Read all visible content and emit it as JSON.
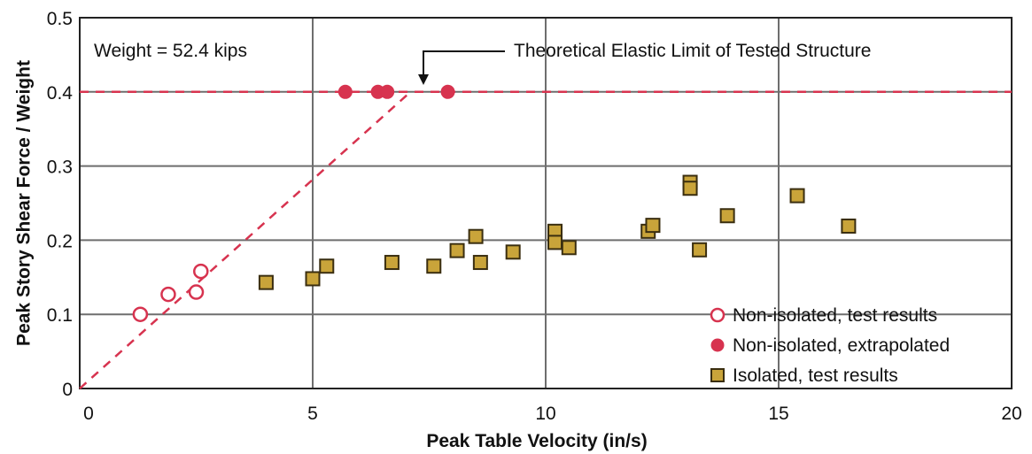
{
  "chart_data": {
    "type": "scatter",
    "xlabel": "Peak Table Velocity (in/s)",
    "ylabel": "Peak Story Shear Force / Weight",
    "xlim": [
      0,
      20
    ],
    "ylim": [
      0,
      0.5
    ],
    "x_ticks": [
      "0",
      "5",
      "10",
      "15",
      "20"
    ],
    "y_ticks": [
      "0",
      "0.1",
      "0.2",
      "0.3",
      "0.4",
      "0.5"
    ],
    "grid": true,
    "legend_placement": "bottom-right",
    "annotations": {
      "weight": "Weight = 52.4 kips",
      "elastic_limit": "Theoretical Elastic Limit of Tested Structure"
    },
    "elastic_limit_value": 0.4,
    "elastic_line": {
      "x": [
        0,
        7.1
      ],
      "y": [
        0,
        0.4
      ]
    },
    "series": [
      {
        "name": "Non-isolated, test results",
        "marker": "open-circle",
        "color": "#d7334f",
        "points": [
          [
            1.3,
            0.1
          ],
          [
            1.9,
            0.127
          ],
          [
            2.5,
            0.13
          ],
          [
            2.6,
            0.158
          ]
        ]
      },
      {
        "name": "Non-isolated, extrapolated",
        "marker": "filled-circle",
        "color": "#d7334f",
        "points": [
          [
            5.7,
            0.4
          ],
          [
            6.4,
            0.4
          ],
          [
            6.6,
            0.4
          ],
          [
            7.9,
            0.4
          ]
        ]
      },
      {
        "name": "Isolated, test results",
        "marker": "square",
        "color": "#c9a43a",
        "points": [
          [
            4.0,
            0.143
          ],
          [
            5.0,
            0.148
          ],
          [
            5.3,
            0.165
          ],
          [
            6.7,
            0.17
          ],
          [
            7.6,
            0.165
          ],
          [
            8.1,
            0.186
          ],
          [
            8.5,
            0.205
          ],
          [
            8.6,
            0.17
          ],
          [
            9.3,
            0.184
          ],
          [
            10.2,
            0.212
          ],
          [
            10.2,
            0.197
          ],
          [
            10.5,
            0.19
          ],
          [
            12.2,
            0.212
          ],
          [
            12.3,
            0.22
          ],
          [
            13.1,
            0.278
          ],
          [
            13.1,
            0.27
          ],
          [
            13.3,
            0.187
          ],
          [
            13.9,
            0.233
          ],
          [
            15.4,
            0.26
          ],
          [
            16.5,
            0.219
          ]
        ]
      }
    ]
  },
  "colors": {
    "red": "#d7334f",
    "gold": "#c9a43a",
    "gold_border": "#3a2e10",
    "grid": "#6e6e6e"
  }
}
